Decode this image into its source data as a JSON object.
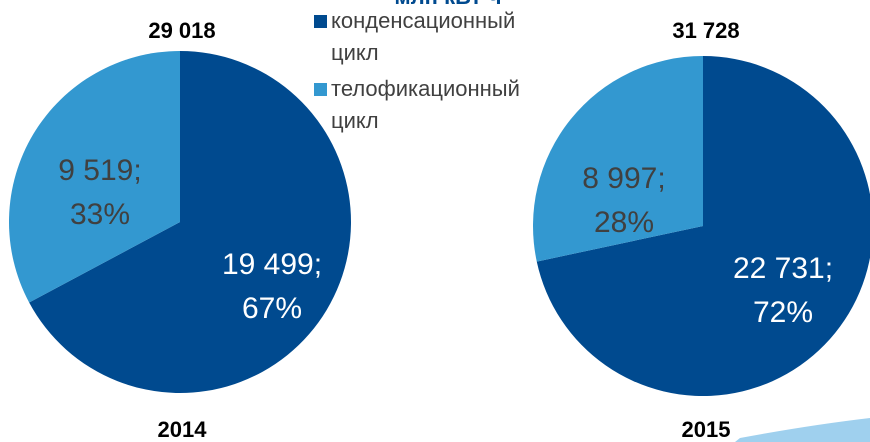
{
  "title": "млн кВт-ч",
  "chart_data": [
    {
      "type": "pie",
      "title": "2014",
      "total": 29018,
      "total_label": "29 018",
      "categories": [
        "конденсационный цикл",
        "телофикационный цикл"
      ],
      "values": [
        19499,
        9519
      ],
      "value_labels": [
        "19 499;",
        "9 519;"
      ],
      "percents": [
        67,
        33
      ],
      "percent_labels": [
        "67%",
        "33%"
      ],
      "colors": [
        "#004a8f",
        "#3398d0"
      ]
    },
    {
      "type": "pie",
      "title": "2015",
      "total": 31728,
      "total_label": "31 728",
      "values": [
        22731,
        8997
      ],
      "value_labels": [
        "22 731;",
        "8 997;"
      ],
      "percents": [
        72,
        28
      ],
      "percent_labels": [
        "72%",
        "28%"
      ],
      "colors": [
        "#004a8f",
        "#3398d0"
      ]
    }
  ]
}
